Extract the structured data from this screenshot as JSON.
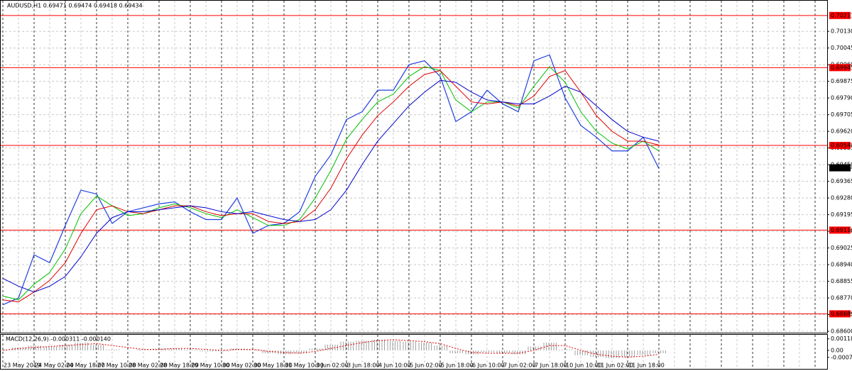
{
  "chart_data": [
    {
      "type": "line",
      "title": "AUDUSD,H1  0.69471 0.69474 0.69418 0.69434",
      "categories": [
        "23 May 2019",
        null,
        "24 May 02:00",
        null,
        "24 May 18:00",
        null,
        "27 May 10:00",
        null,
        "28 May 02:00",
        null,
        "28 May 18:00",
        null,
        "29 May 10:00",
        null,
        "30 May 02:00",
        null,
        "30 May 18:00",
        null,
        "31 May 10:00",
        null,
        "3 Jun 02:00",
        null,
        "3 Jun 18:00",
        null,
        "4 Jun 10:00",
        null,
        "5 Jun 02:00",
        null,
        "5 Jun 18:00",
        null,
        "6 Jun 10:00",
        null,
        "7 Jun 02:00",
        null,
        "7 Jun 18:00",
        null,
        "10 Jun 10:00",
        null,
        "11 Jun 02:00",
        null,
        "11 Jun 18:00",
        null,
        null,
        null,
        null,
        null,
        null,
        null,
        null,
        null,
        null,
        null,
        null
      ],
      "series": [
        {
          "color": "#2040e0",
          "values": [
            0.68735,
            0.6877,
            0.6899,
            0.6895,
            0.6914,
            0.6932,
            0.693,
            0.6915,
            0.6921,
            0.6923,
            0.6925,
            0.6926,
            0.6921,
            0.6917,
            0.6917,
            0.6928,
            0.691,
            0.6914,
            0.6915,
            0.6921,
            0.6939,
            0.695,
            0.6968,
            0.6972,
            0.6983,
            0.6983,
            0.6996,
            0.6998,
            0.699,
            0.6967,
            0.6972,
            0.6983,
            0.6976,
            0.6972,
            0.6998,
            0.7001,
            0.6979,
            0.6965,
            0.6959,
            0.6952,
            0.6952,
            0.6959,
            0.6943,
            null,
            null,
            null,
            null,
            null,
            null,
            null,
            null,
            null,
            null
          ]
        },
        {
          "color": "#00c000",
          "values": [
            0.6878,
            0.6876,
            0.6884,
            0.689,
            0.6902,
            0.692,
            0.6929,
            0.6924,
            0.6919,
            0.692,
            0.6923,
            0.6925,
            0.6923,
            0.692,
            0.6918,
            0.6922,
            0.6918,
            0.6914,
            0.6914,
            0.6917,
            0.6928,
            0.6942,
            0.6958,
            0.6968,
            0.6977,
            0.6981,
            0.699,
            0.6995,
            0.6993,
            0.6978,
            0.6972,
            0.6977,
            0.6977,
            0.6974,
            0.6985,
            0.6995,
            0.6987,
            0.6972,
            0.6962,
            0.6956,
            0.6953,
            0.6957,
            0.6952,
            null,
            null,
            null,
            null,
            null,
            null,
            null,
            null,
            null,
            null
          ]
        },
        {
          "color": "#e00000",
          "values": [
            0.6876,
            0.6875,
            0.688,
            0.6886,
            0.6895,
            0.691,
            0.6922,
            0.6924,
            0.6921,
            0.692,
            0.6922,
            0.6924,
            0.6924,
            0.6921,
            0.6919,
            0.692,
            0.692,
            0.6916,
            0.6915,
            0.6916,
            0.6922,
            0.6933,
            0.6948,
            0.696,
            0.697,
            0.6977,
            0.6985,
            0.6991,
            0.6993,
            0.6985,
            0.6977,
            0.6976,
            0.6977,
            0.6975,
            0.698,
            0.699,
            0.6993,
            0.6982,
            0.697,
            0.6962,
            0.6957,
            0.6957,
            0.6955,
            null,
            null,
            null,
            null,
            null,
            null,
            null,
            null,
            null,
            null
          ]
        },
        {
          "color": "#0000cc",
          "values": [
            0.6887,
            0.6883,
            0.688,
            0.6883,
            0.6888,
            0.6898,
            0.691,
            0.6918,
            0.6921,
            0.6921,
            0.6922,
            0.6923,
            0.6924,
            0.6923,
            0.6921,
            0.692,
            0.6921,
            0.6919,
            0.6917,
            0.6916,
            0.6917,
            0.6922,
            0.6932,
            0.6945,
            0.6957,
            0.6966,
            0.6975,
            0.6982,
            0.6988,
            0.6987,
            0.6982,
            0.6978,
            0.6977,
            0.6976,
            0.6976,
            0.698,
            0.6985,
            0.6982,
            0.6975,
            0.6968,
            0.6962,
            0.6959,
            0.6957,
            null,
            null,
            null,
            null,
            null,
            null,
            null,
            null,
            null,
            null
          ]
        }
      ],
      "ylim": [
        0.686,
        0.7029
      ],
      "yticks": [
        {
          "value": 0.7013,
          "label": "0.70130"
        },
        0.70045,
        {
          "value": 0.6996,
          "label": "0.69960"
        },
        0.69875,
        {
          "value": 0.6979,
          "label": "0.69790"
        },
        0.69705,
        {
          "value": 0.6962,
          "label": "0.69620"
        },
        0.69535,
        {
          "value": 0.6945,
          "label": "0.69450"
        },
        0.69365,
        {
          "value": 0.6928,
          "label": "0.69280"
        },
        0.69195,
        {
          "value": 0.6911,
          "label": "0.69110"
        },
        0.69025,
        {
          "value": 0.6894,
          "label": "0.68940"
        },
        0.68855,
        {
          "value": 0.6877,
          "label": "0.68770"
        },
        0.68685,
        {
          "value": 0.686,
          "label": "0.68600"
        }
      ],
      "levels": [
        0.70211,
        0.69945,
        0.69548,
        0.69116,
        0.68689
      ],
      "level_color": "#ff0000",
      "last_price": 0.69434,
      "grid": true
    },
    {
      "type": "bar",
      "title": "MACD(12,26,9) -0.000311 -0.000140",
      "color": "#a0a0a0",
      "signal_color": "#e00000",
      "values": [
        0.0001,
        0.0003,
        0.0005,
        0.0004,
        0.0006,
        0.0008,
        0.0006,
        0.0001,
        0.0,
        0.0001,
        0.0002,
        0.0002,
        0.0001,
        -0.0001,
        -0.0001,
        0.0002,
        0.0001,
        -0.0003,
        -0.0004,
        -0.0003,
        0.0002,
        0.0006,
        0.0009,
        0.001,
        0.0011,
        0.001,
        0.0009,
        0.0008,
        0.0005,
        -0.0003,
        -0.0004,
        -0.0002,
        -0.0003,
        -0.0004,
        0.0004,
        0.0008,
        0.0001,
        -0.0005,
        -0.0007,
        -0.0008,
        -0.0007,
        -0.0005,
        -0.0003
      ],
      "signal": [
        0.0,
        0.0002,
        0.0003,
        0.0004,
        0.0005,
        0.0006,
        0.0007,
        0.0005,
        0.0003,
        0.0001,
        0.0001,
        0.0002,
        0.0002,
        0.0001,
        0.0,
        0.0001,
        0.0001,
        -0.0001,
        -0.0002,
        -0.0003,
        -0.0001,
        0.0002,
        0.0005,
        0.0008,
        0.001,
        0.0011,
        0.001,
        0.0009,
        0.0007,
        0.0002,
        -0.0002,
        -0.0003,
        -0.0003,
        -0.0003,
        0.0,
        0.0005,
        0.0005,
        0.0,
        -0.0004,
        -0.0006,
        -0.0007,
        -0.0006,
        -0.0004
      ],
      "ylim": [
        -0.0019,
        0.0016
      ],
      "yticks": [
        0.001187,
        {
          "value": 0,
          "label": "0.00"
        },
        -0.000716
      ]
    }
  ]
}
